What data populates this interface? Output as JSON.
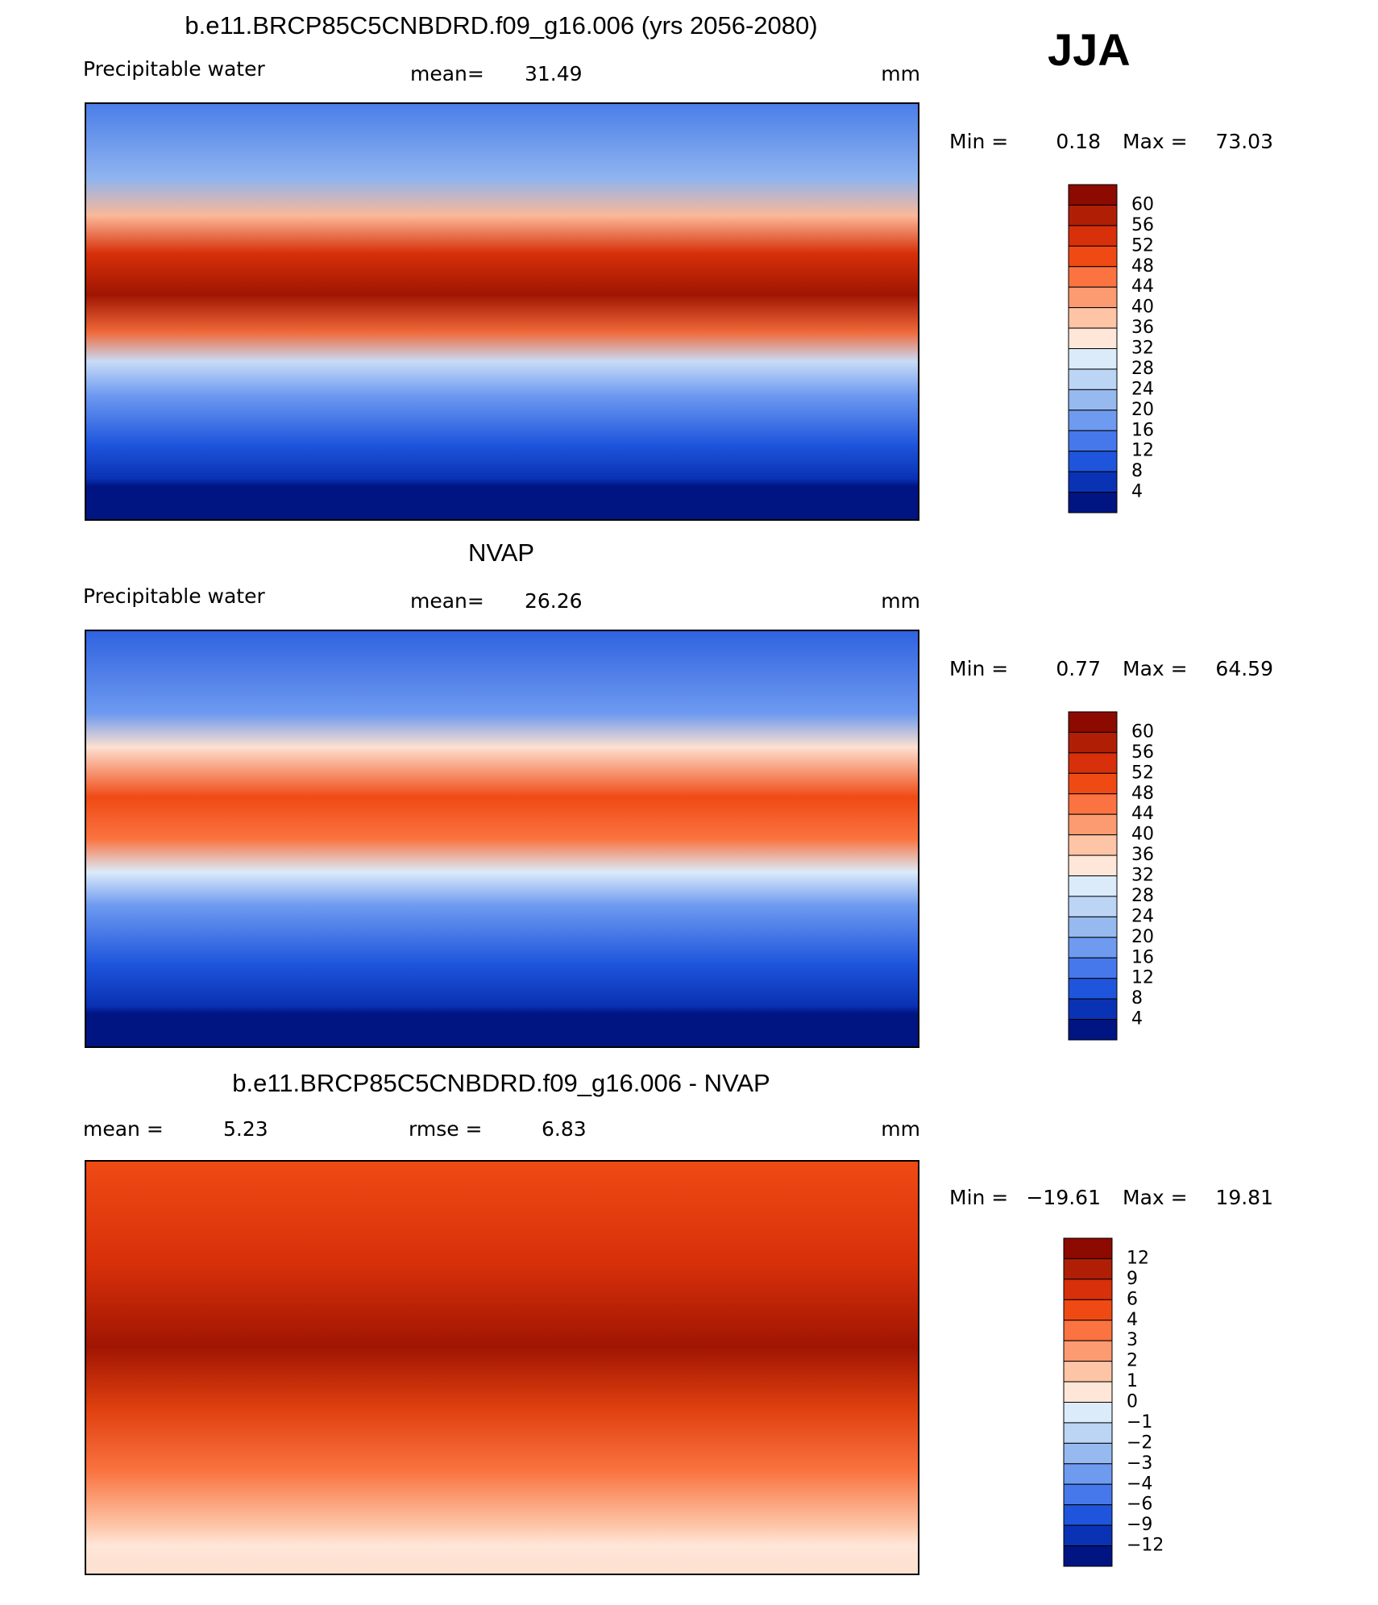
{
  "season": "JJA",
  "panels": [
    {
      "title": "b.e11.BRCP85C5CNBDRD.f09_g16.006 (yrs 2056-2080)",
      "field": "Precipitable water",
      "mean_label": "mean=",
      "mean": 31.49,
      "units": "mm",
      "min_label": "Min =",
      "min": 0.18,
      "max_label": "Max =",
      "max": 73.03,
      "colorbar": {
        "levels": [
          60,
          56,
          52,
          48,
          44,
          40,
          36,
          32,
          28,
          24,
          20,
          16,
          12,
          8,
          4
        ],
        "colors": [
          "#8c0a00",
          "#b01e05",
          "#d7300a",
          "#f04a14",
          "#fa7340",
          "#fc9b72",
          "#fdc4a6",
          "#fee6d8",
          "#dcebfa",
          "#bcd5f5",
          "#96baf0",
          "#6e9af0",
          "#4678eb",
          "#1e55dc",
          "#0a32b4",
          "#001482"
        ]
      }
    },
    {
      "title": "NVAP",
      "field": "Precipitable water",
      "mean_label": "mean=",
      "mean": 26.26,
      "units": "mm",
      "min_label": "Min =",
      "min": 0.77,
      "max_label": "Max =",
      "max": 64.59,
      "colorbar": {
        "levels": [
          60,
          56,
          52,
          48,
          44,
          40,
          36,
          32,
          28,
          24,
          20,
          16,
          12,
          8,
          4
        ],
        "colors": [
          "#8c0a00",
          "#b01e05",
          "#d7300a",
          "#f04a14",
          "#fa7340",
          "#fc9b72",
          "#fdc4a6",
          "#fee6d8",
          "#dcebfa",
          "#bcd5f5",
          "#96baf0",
          "#6e9af0",
          "#4678eb",
          "#1e55dc",
          "#0a32b4",
          "#001482"
        ]
      }
    },
    {
      "title": "b.e11.BRCP85C5CNBDRD.f09_g16.006 - NVAP",
      "mean_label": "mean =",
      "mean": 5.23,
      "rmse_label": "rmse =",
      "rmse": 6.83,
      "units": "mm",
      "min_label": "Min =",
      "min": {
        "value": -19.61,
        "label": "−19.61"
      },
      "max_label": "Max =",
      "max": 19.81,
      "colorbar": {
        "levels": [
          12,
          9,
          6,
          4,
          3,
          2,
          1,
          0,
          {
            "value": -1,
            "label": "−1"
          },
          {
            "value": -2,
            "label": "−2"
          },
          {
            "value": -3,
            "label": "−3"
          },
          {
            "value": -4,
            "label": "−4"
          },
          {
            "value": -6,
            "label": "−6"
          },
          {
            "value": -9,
            "label": "−9"
          },
          {
            "value": -12,
            "label": "−12"
          }
        ],
        "colors": [
          "#8c0a00",
          "#b01e05",
          "#d7300a",
          "#f04a14",
          "#fa7340",
          "#fc9b72",
          "#fdc4a6",
          "#fee6d8",
          "#dcebfa",
          "#bcd5f5",
          "#96baf0",
          "#6e9af0",
          "#4678eb",
          "#1e55dc",
          "#0a32b4",
          "#001482"
        ]
      }
    }
  ]
}
